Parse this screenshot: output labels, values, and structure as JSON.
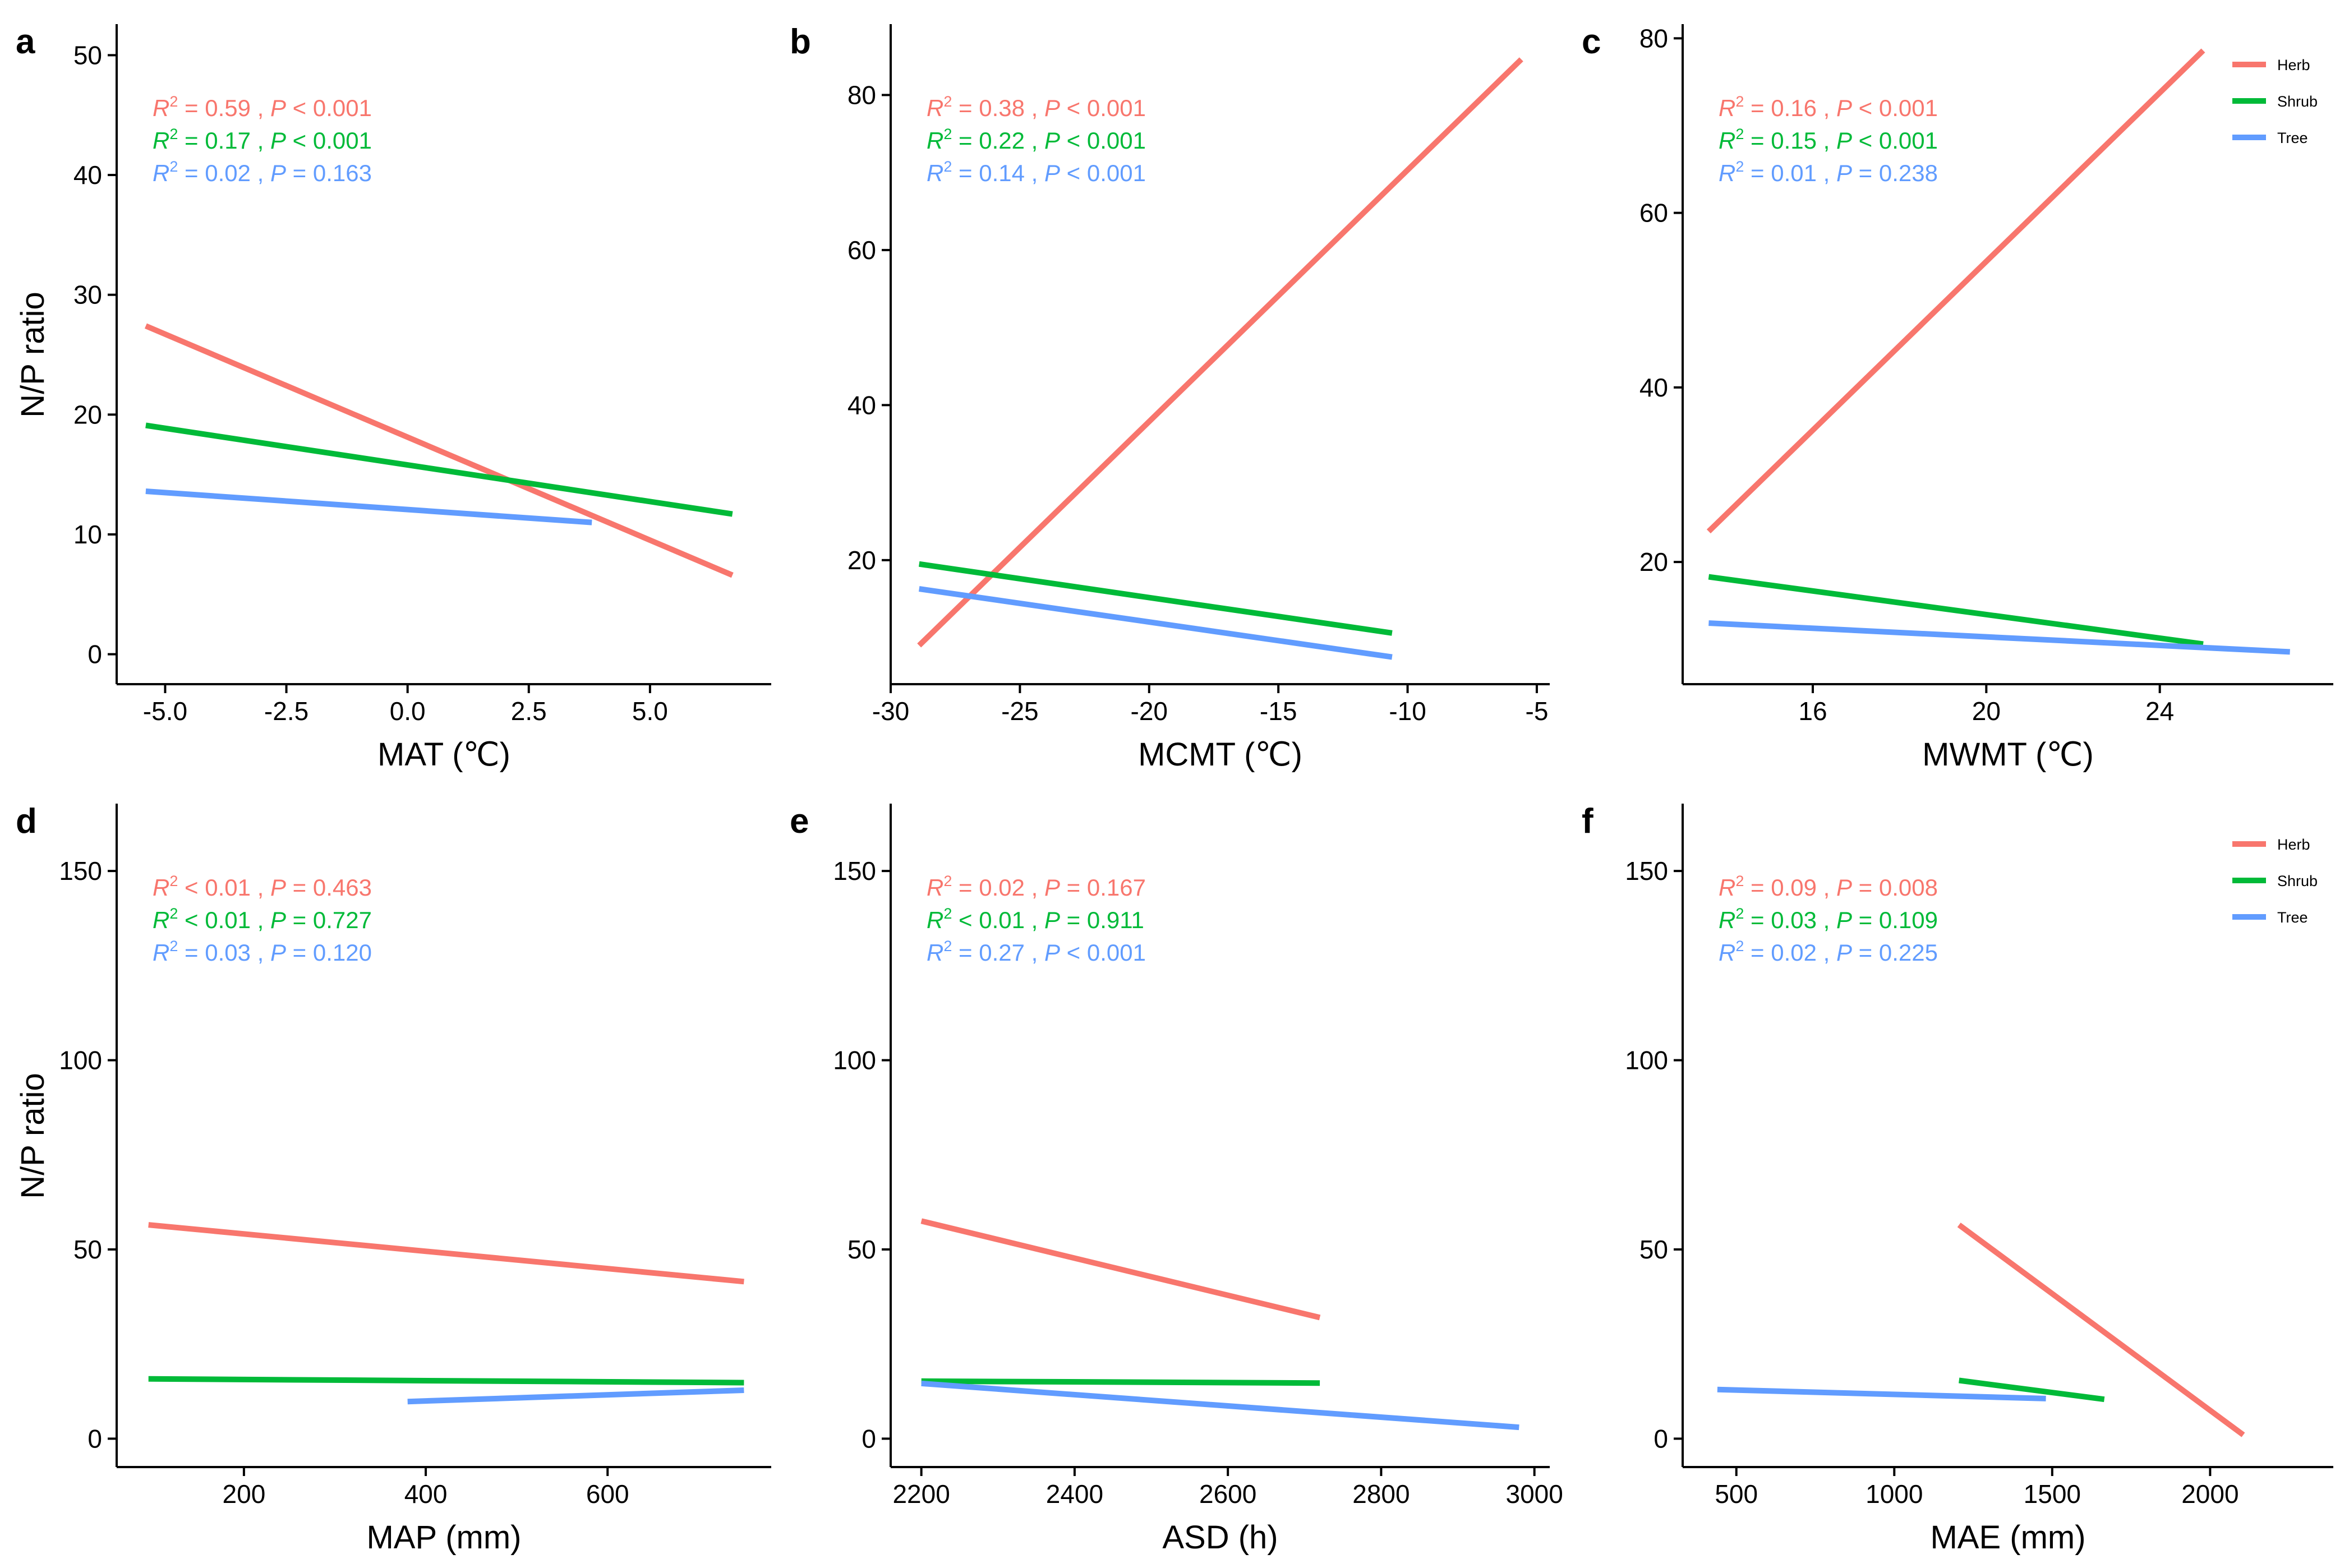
{
  "colors": {
    "Herb": "#F8766D",
    "Shrub": "#00BA38",
    "Tree": "#619CFF"
  },
  "legend": [
    "Herb",
    "Shrub",
    "Tree"
  ],
  "chart_data": [
    {
      "type": "line",
      "panel": "a",
      "xlabel": "MAT (℃)",
      "ylabel": "N/P ratio",
      "xlim": [
        -6.0,
        7.5
      ],
      "ylim": [
        -2.5,
        52.5
      ],
      "xticks": [
        -5.0,
        -2.5,
        0.0,
        2.5,
        5.0
      ],
      "xtick_labels": [
        "-5.0",
        "-2.5",
        "0.0",
        "2.5",
        "5.0"
      ],
      "yticks": [
        0,
        10,
        20,
        30,
        40,
        50
      ],
      "ytick_labels": [
        "0",
        "10",
        "20",
        "30",
        "40",
        "50"
      ],
      "grid": false,
      "legend": false,
      "series": [
        {
          "name": "Herb",
          "x": [
            -5.4,
            6.7
          ],
          "y": [
            27.4,
            6.6
          ],
          "stat": {
            "r2": "0.59",
            "r2_op": "=",
            "p": "0.001",
            "p_op": "<"
          }
        },
        {
          "name": "Shrub",
          "x": [
            -5.4,
            6.7
          ],
          "y": [
            19.1,
            11.7
          ],
          "stat": {
            "r2": "0.17",
            "r2_op": "=",
            "p": "0.001",
            "p_op": "<"
          }
        },
        {
          "name": "Tree",
          "x": [
            -5.4,
            3.8
          ],
          "y": [
            13.6,
            11.0
          ],
          "stat": {
            "r2": "0.02",
            "r2_op": "=",
            "p": "0.163",
            "p_op": "="
          }
        }
      ]
    },
    {
      "type": "line",
      "panel": "b",
      "xlabel": "MCMT (℃)",
      "ylabel": "",
      "xlim": [
        -30.0,
        -4.5
      ],
      "ylim": [
        4.0,
        89.0
      ],
      "xticks": [
        -30,
        -25,
        -20,
        -15,
        -10,
        -5
      ],
      "xtick_labels": [
        "-30",
        "-25",
        "-20",
        "-15",
        "-10",
        "-5"
      ],
      "yticks": [
        20,
        40,
        60,
        80
      ],
      "ytick_labels": [
        "20",
        "40",
        "60",
        "80"
      ],
      "grid": false,
      "legend": false,
      "series": [
        {
          "name": "Herb",
          "x": [
            -28.9,
            -5.6
          ],
          "y": [
            9.0,
            84.6
          ],
          "stat": {
            "r2": "0.38",
            "r2_op": "=",
            "p": "0.001",
            "p_op": "<"
          }
        },
        {
          "name": "Shrub",
          "x": [
            -28.9,
            -10.6
          ],
          "y": [
            19.5,
            10.6
          ],
          "stat": {
            "r2": "0.22",
            "r2_op": "=",
            "p": "0.001",
            "p_op": "<"
          }
        },
        {
          "name": "Tree",
          "x": [
            -28.9,
            -10.6
          ],
          "y": [
            16.3,
            7.5
          ],
          "stat": {
            "r2": "0.14",
            "r2_op": "=",
            "p": "0.001",
            "p_op": "<"
          }
        }
      ]
    },
    {
      "type": "line",
      "panel": "c",
      "xlabel": "MWMT (℃)",
      "ylabel": "",
      "xlim": [
        13.0,
        28.0
      ],
      "ylim": [
        6.0,
        81.5
      ],
      "xticks": [
        16,
        20,
        24
      ],
      "xtick_labels": [
        "16",
        "20",
        "24"
      ],
      "yticks": [
        20,
        40,
        60,
        80
      ],
      "ytick_labels": [
        "20",
        "40",
        "60",
        "80"
      ],
      "grid": false,
      "legend": "top-right",
      "series": [
        {
          "name": "Herb",
          "x": [
            13.6,
            25.0
          ],
          "y": [
            23.5,
            78.6
          ],
          "stat": {
            "r2": "0.16",
            "r2_op": "=",
            "p": "0.001",
            "p_op": "<"
          }
        },
        {
          "name": "Shrub",
          "x": [
            13.6,
            25.0
          ],
          "y": [
            18.3,
            10.6
          ],
          "stat": {
            "r2": "0.15",
            "r2_op": "=",
            "p": "0.001",
            "p_op": "<"
          }
        },
        {
          "name": "Tree",
          "x": [
            13.6,
            27.0
          ],
          "y": [
            13.0,
            9.7
          ],
          "stat": {
            "r2": "0.01",
            "r2_op": "=",
            "p": "0.238",
            "p_op": "="
          }
        }
      ]
    },
    {
      "type": "line",
      "panel": "d",
      "xlabel": "MAP (mm)",
      "ylabel": "N/P ratio",
      "xlim": [
        60,
        780
      ],
      "ylim": [
        -7.5,
        167.5
      ],
      "xticks": [
        200,
        400,
        600
      ],
      "xtick_labels": [
        "200",
        "400",
        "600"
      ],
      "yticks": [
        0,
        50,
        100,
        150
      ],
      "ytick_labels": [
        "0",
        "50",
        "100",
        "150"
      ],
      "grid": false,
      "legend": false,
      "series": [
        {
          "name": "Herb",
          "x": [
            95,
            750
          ],
          "y": [
            56.5,
            41.5
          ],
          "stat": {
            "r2": "0.01",
            "r2_op": "<",
            "p": "0.463",
            "p_op": "="
          }
        },
        {
          "name": "Shrub",
          "x": [
            95,
            750
          ],
          "y": [
            15.8,
            14.8
          ],
          "stat": {
            "r2": "0.01",
            "r2_op": "<",
            "p": "0.727",
            "p_op": "="
          }
        },
        {
          "name": "Tree",
          "x": [
            380,
            750
          ],
          "y": [
            9.8,
            12.8
          ],
          "stat": {
            "r2": "0.03",
            "r2_op": "=",
            "p": "0.120",
            "p_op": "="
          }
        }
      ]
    },
    {
      "type": "line",
      "panel": "e",
      "xlabel": "ASD (h)",
      "ylabel": "",
      "xlim": [
        2160,
        3020
      ],
      "ylim": [
        -7.5,
        167.5
      ],
      "xticks": [
        2200,
        2400,
        2600,
        2800,
        3000
      ],
      "xtick_labels": [
        "2200",
        "2400",
        "2600",
        "2800",
        "3000"
      ],
      "yticks": [
        0,
        50,
        100,
        150
      ],
      "ytick_labels": [
        "0",
        "50",
        "100",
        "150"
      ],
      "grid": false,
      "legend": false,
      "series": [
        {
          "name": "Herb",
          "x": [
            2200,
            2720
          ],
          "y": [
            57.5,
            32.0
          ],
          "stat": {
            "r2": "0.02",
            "r2_op": "=",
            "p": "0.167",
            "p_op": "="
          }
        },
        {
          "name": "Shrub",
          "x": [
            2200,
            2720
          ],
          "y": [
            15.2,
            14.7
          ],
          "stat": {
            "r2": "0.01",
            "r2_op": "<",
            "p": "0.911",
            "p_op": "="
          }
        },
        {
          "name": "Tree",
          "x": [
            2200,
            2980
          ],
          "y": [
            14.6,
            3.0
          ],
          "stat": {
            "r2": "0.27",
            "r2_op": "=",
            "p": "0.001",
            "p_op": "<"
          }
        }
      ]
    },
    {
      "type": "line",
      "panel": "f",
      "xlabel": "MAE (mm)",
      "ylabel": "",
      "xlim": [
        330,
        2390
      ],
      "ylim": [
        -7.5,
        167.5
      ],
      "xticks": [
        500,
        1000,
        1500,
        2000
      ],
      "xtick_labels": [
        "500",
        "1000",
        "1500",
        "2000"
      ],
      "yticks": [
        0,
        50,
        100,
        150
      ],
      "ytick_labels": [
        "0",
        "50",
        "100",
        "150"
      ],
      "grid": false,
      "legend": "top-right",
      "series": [
        {
          "name": "Herb",
          "x": [
            1205,
            2105
          ],
          "y": [
            56.5,
            1.0
          ],
          "stat": {
            "r2": "0.09",
            "r2_op": "=",
            "p": "0.008",
            "p_op": "="
          }
        },
        {
          "name": "Shrub",
          "x": [
            1205,
            1665
          ],
          "y": [
            15.4,
            10.4
          ],
          "stat": {
            "r2": "0.03",
            "r2_op": "=",
            "p": "0.109",
            "p_op": "="
          }
        },
        {
          "name": "Tree",
          "x": [
            440,
            1480
          ],
          "y": [
            13.0,
            10.6
          ],
          "stat": {
            "r2": "0.02",
            "r2_op": "=",
            "p": "0.225",
            "p_op": "="
          }
        }
      ]
    }
  ]
}
